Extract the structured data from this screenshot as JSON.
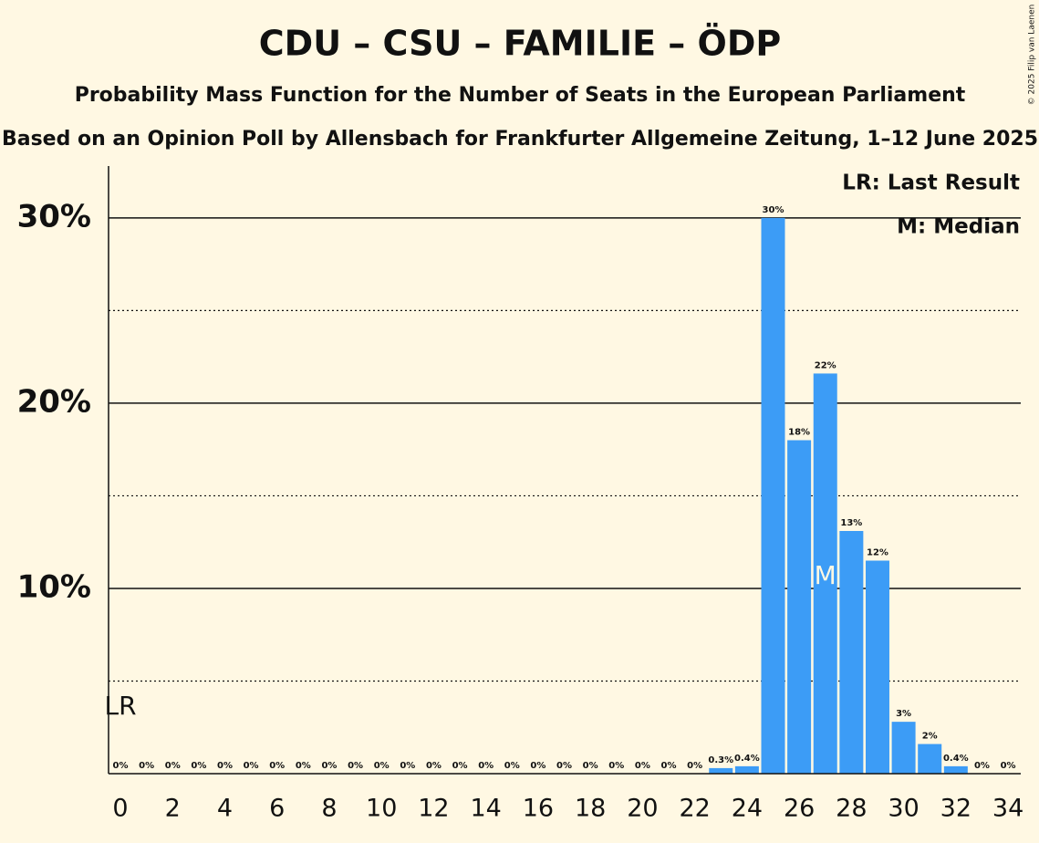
{
  "chart_data": {
    "type": "bar",
    "title": "CDU – CSU – FAMILIE – ÖDP",
    "subtitle": "Probability Mass Function for the Number of Seats in the European Parliament",
    "subtitle2": "Based on an Opinion Poll by Allensbach for Frankfurter Allgemeine Zeitung, 1–12 June 2025",
    "copyright": "© 2025 Filip van Laenen",
    "categories": [
      0,
      null,
      2,
      null,
      4,
      null,
      6,
      null,
      8,
      null,
      10,
      null,
      12,
      null,
      14,
      null,
      16,
      null,
      18,
      null,
      20,
      null,
      22,
      null,
      24,
      null,
      26,
      null,
      28,
      null,
      30,
      null,
      32,
      null,
      34
    ],
    "values": [
      0,
      0,
      0,
      0,
      0,
      0,
      0,
      0,
      0,
      0,
      0,
      0,
      0,
      0,
      0,
      0,
      0,
      0,
      0,
      0,
      0,
      0,
      0,
      0.3,
      0.4,
      30,
      18,
      21.6,
      13.1,
      11.5,
      2.8,
      1.6,
      0.4,
      0,
      0
    ],
    "value_labels": [
      "0%",
      "0%",
      "0%",
      "0%",
      "0%",
      "0%",
      "0%",
      "0%",
      "0%",
      "0%",
      "0%",
      "0%",
      "0%",
      "0%",
      "0%",
      "0%",
      "0%",
      "0%",
      "0%",
      "0%",
      "0%",
      "0%",
      "0%",
      "0.3%",
      "0.4%",
      "30%",
      "18%",
      "22%",
      "13%",
      "12%",
      "3%",
      "2%",
      "0.4%",
      "0%",
      "0%"
    ],
    "color": "#3c9cf6",
    "ylim": [
      0,
      32.8
    ],
    "yticks": [
      {
        "value": 10,
        "label": "10%"
      },
      {
        "value": 20,
        "label": "20%"
      },
      {
        "value": 30,
        "label": "30%"
      }
    ],
    "minor_yticks": [
      5,
      15,
      25
    ],
    "grid": true,
    "last_result": {
      "label": "LR",
      "seat": 0
    },
    "median": {
      "label": "M",
      "seat": 27
    },
    "legend": [
      "LR: Last Result",
      "M: Median"
    ]
  }
}
